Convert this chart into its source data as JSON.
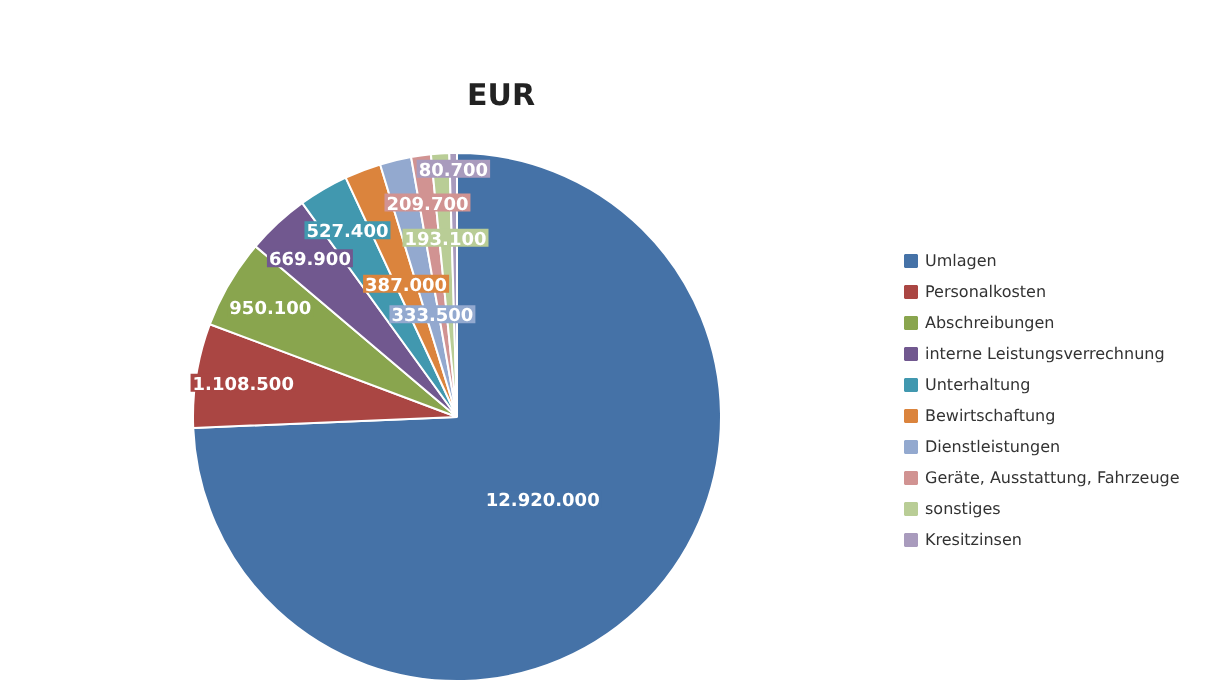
{
  "chart_data": {
    "type": "pie",
    "title": "EUR",
    "categories": [
      "Umlagen",
      "Personalkosten",
      "Abschreibungen",
      "interne Leistungsverrechnung",
      "Unterhaltung",
      "Bewirtschaftung",
      "Dienstleistungen",
      "Geräte, Ausstattung, Fahrzeuge",
      "sonstiges",
      "Kresitzinsen"
    ],
    "values": [
      12920000,
      1108500,
      950100,
      669900,
      527400,
      387000,
      333500,
      209700,
      193100,
      80700
    ],
    "value_labels": [
      "12.920.000",
      "1.108.500",
      "950.100",
      "669.900",
      "527.400",
      "387.000",
      "333.500",
      "209.700",
      "193.100",
      "80.700"
    ],
    "colors": [
      "#4572a7",
      "#aa4643",
      "#89a54e",
      "#71588f",
      "#4198af",
      "#db843d",
      "#93a9cf",
      "#d19392",
      "#b9cd96",
      "#a99bbd"
    ],
    "legend": "right"
  }
}
